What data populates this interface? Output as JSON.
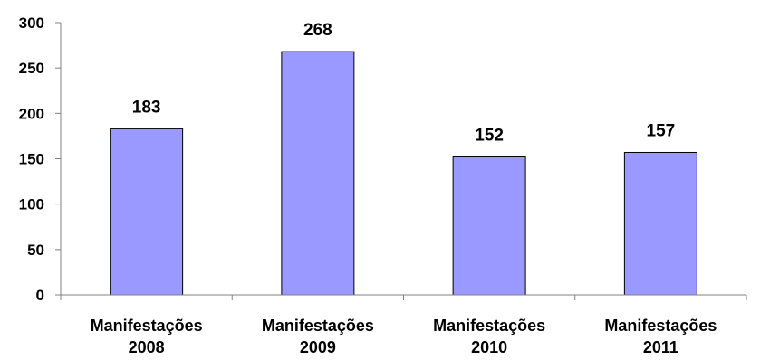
{
  "chart_data": {
    "type": "bar",
    "categories": [
      [
        "Manifestações",
        "2008"
      ],
      [
        "Manifestações",
        "2009"
      ],
      [
        "Manifestações",
        "2010"
      ],
      [
        "Manifestações",
        "2011"
      ]
    ],
    "values": [
      183,
      268,
      152,
      157
    ],
    "data_labels": [
      "183",
      "268",
      "152",
      "157"
    ],
    "y_ticks": [
      "0",
      "50",
      "100",
      "150",
      "200",
      "250",
      "300"
    ],
    "ylim": [
      0,
      300
    ],
    "title": "",
    "xlabel": "",
    "ylabel": "",
    "grid": false,
    "legend": false,
    "bar_color": "#9999FF",
    "bar_border_color": "#000000"
  }
}
